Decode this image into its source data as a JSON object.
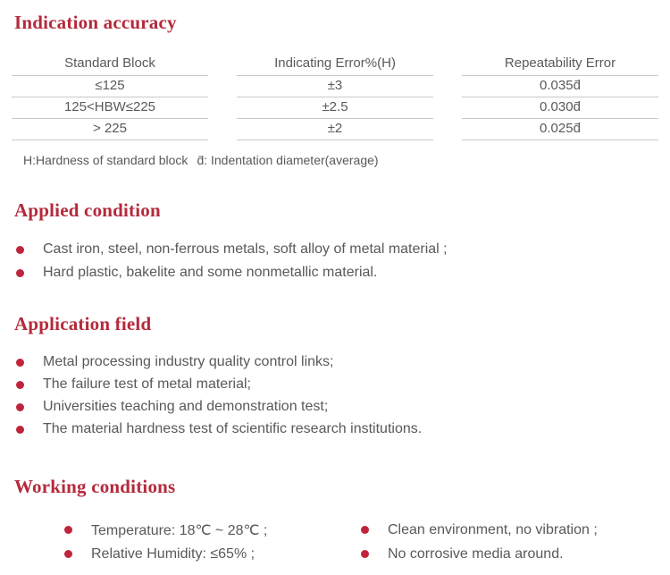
{
  "colors": {
    "accent_heading": "#b5293b",
    "accent_bullet": "#c0243c",
    "body_text": "#595959",
    "table_line": "#c9c9c9"
  },
  "indication": {
    "title": "Indication accuracy",
    "table": {
      "columns": [
        "Standard Block",
        "Indicating Error%(H)",
        "Repeatability Error"
      ],
      "rows": [
        [
          "≤125",
          "±3",
          "0.035d̄"
        ],
        [
          "125<HBW≤225",
          "±2.5",
          "0.030d̄"
        ],
        [
          "> 225",
          "±2",
          "0.025d̄"
        ]
      ]
    },
    "note_h": "H:Hardness of standard block",
    "note_d": "d̄: Indentation diameter(average)"
  },
  "applied": {
    "title": "Applied condition",
    "bullets": [
      "Cast iron, steel, non-ferrous metals, soft alloy of metal material ;",
      "Hard plastic, bakelite and some nonmetallic material."
    ]
  },
  "application": {
    "title": "Application field",
    "bullets": [
      "Metal processing industry quality control links;",
      "The failure test of metal material;",
      "Universities teaching and demonstration test;",
      "The material hardness test of scientific research institutions."
    ]
  },
  "working": {
    "title": "Working conditions",
    "left_bullets": [
      "Temperature:  18℃ ~ 28℃ ;",
      "Relative Humidity:  ≤65% ;"
    ],
    "right_bullets": [
      "Clean environment, no vibration ;",
      "No corrosive media around."
    ]
  }
}
